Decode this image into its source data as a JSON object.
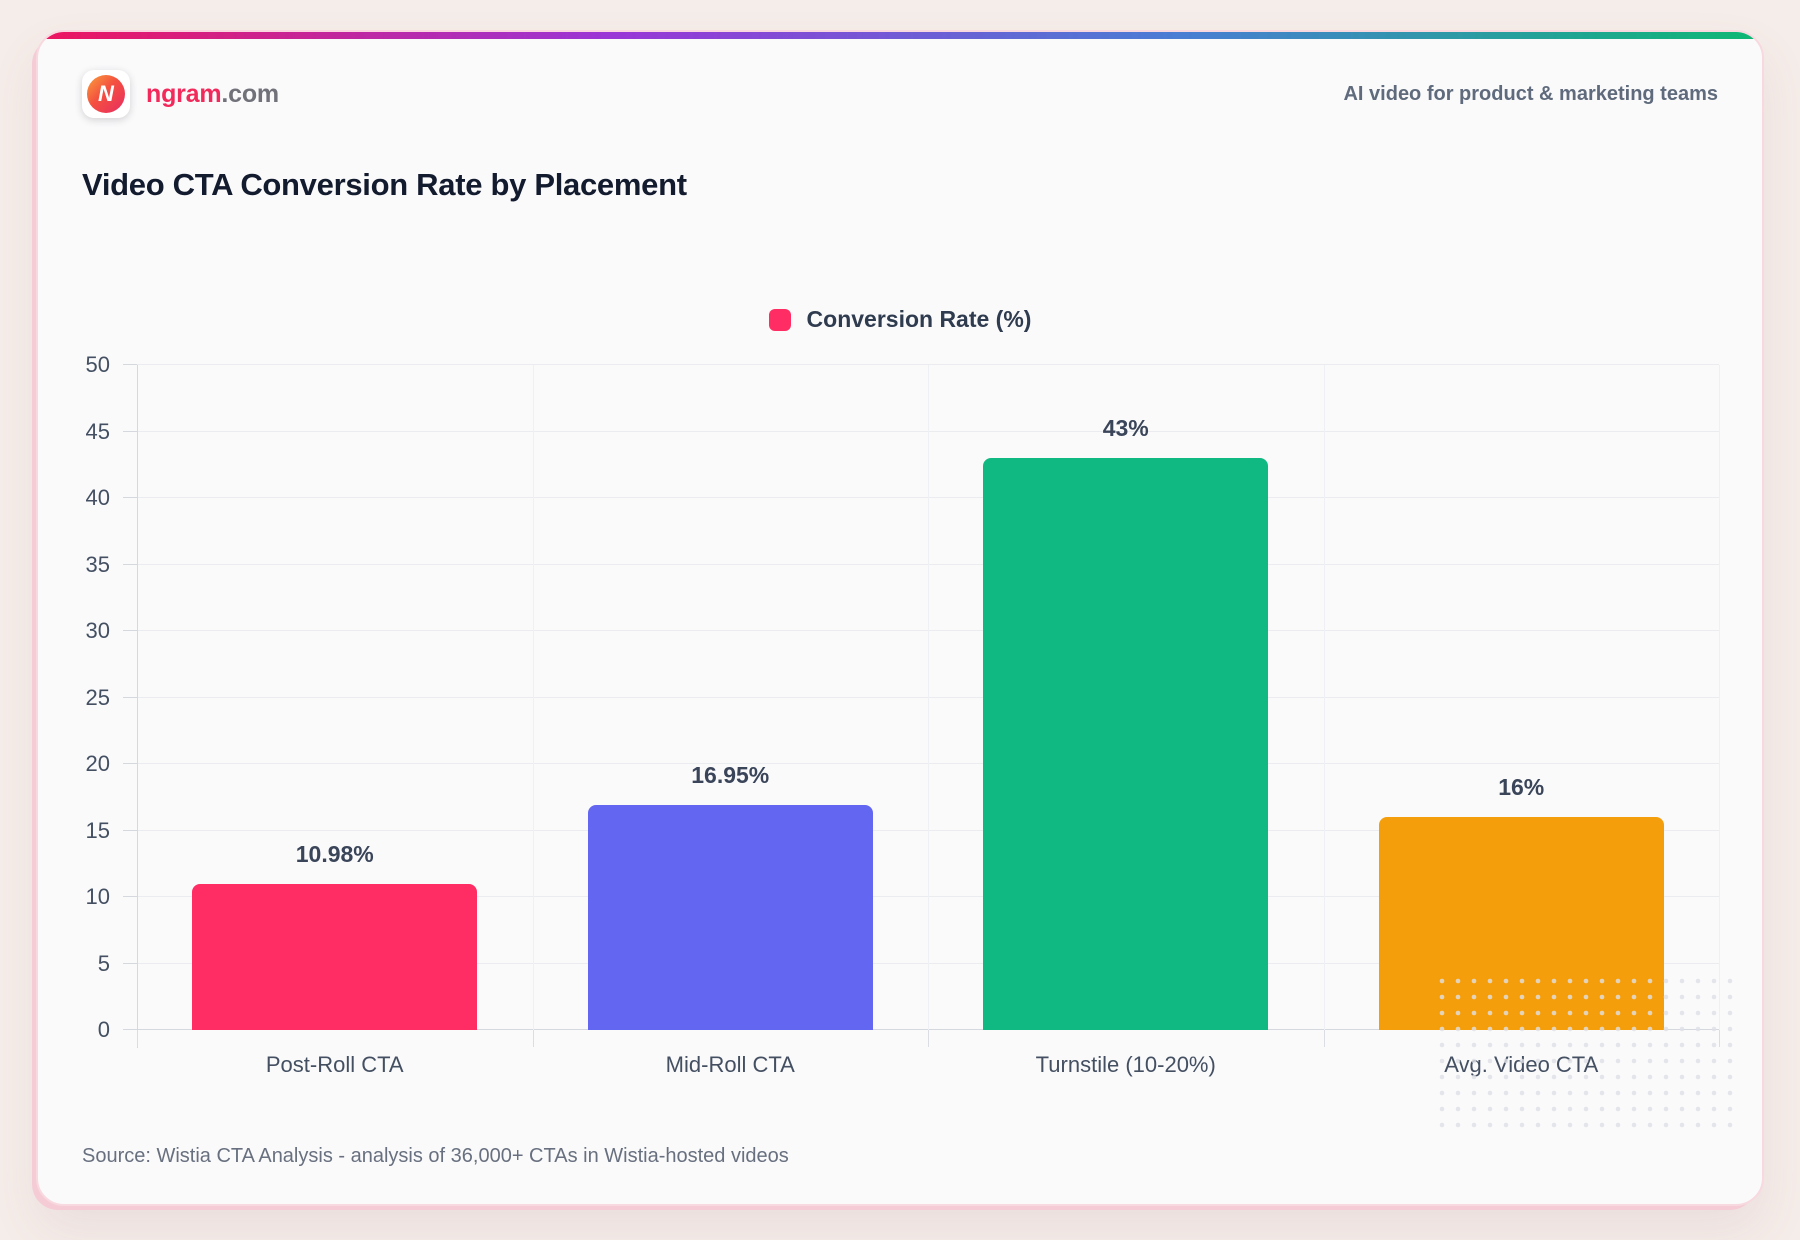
{
  "brand": {
    "logo_letter": "N",
    "name_primary": "ngram",
    "name_secondary": ".com",
    "tagline": "AI video for product & marketing teams"
  },
  "title": "Video CTA Conversion Rate by Placement",
  "source": "Source: Wistia CTA Analysis - analysis of 36,000+ CTAs in Wistia-hosted videos",
  "colors": {
    "page_bg": "#F5EDE9",
    "card_bg": "#FAFAFB",
    "card_border": "#F7D9DF",
    "accent_gradient": [
      "#ED155F",
      "#9B35D6",
      "#4A7DD4",
      "#0EB873"
    ]
  },
  "chart_data": {
    "type": "bar",
    "title": "Video CTA Conversion Rate by Placement",
    "categories": [
      "Post-Roll CTA",
      "Mid-Roll CTA",
      "Turnstile (10-20%)",
      "Avg. Video CTA"
    ],
    "values": [
      10.98,
      16.95,
      43,
      16
    ],
    "value_labels": [
      "10.98%",
      "16.95%",
      "43%",
      "16%"
    ],
    "bar_colors": [
      "#FF2D63",
      "#6366F1",
      "#10B981",
      "#F59E0B"
    ],
    "legend": [
      {
        "label": "Conversion Rate (%)",
        "color": "#FF2D63"
      }
    ],
    "legend_position": "top-center",
    "xlabel": "",
    "ylabel": "",
    "ylim": [
      0,
      50
    ],
    "yticks": [
      0,
      5,
      10,
      15,
      20,
      25,
      30,
      35,
      40,
      45,
      50
    ],
    "grid": true
  }
}
